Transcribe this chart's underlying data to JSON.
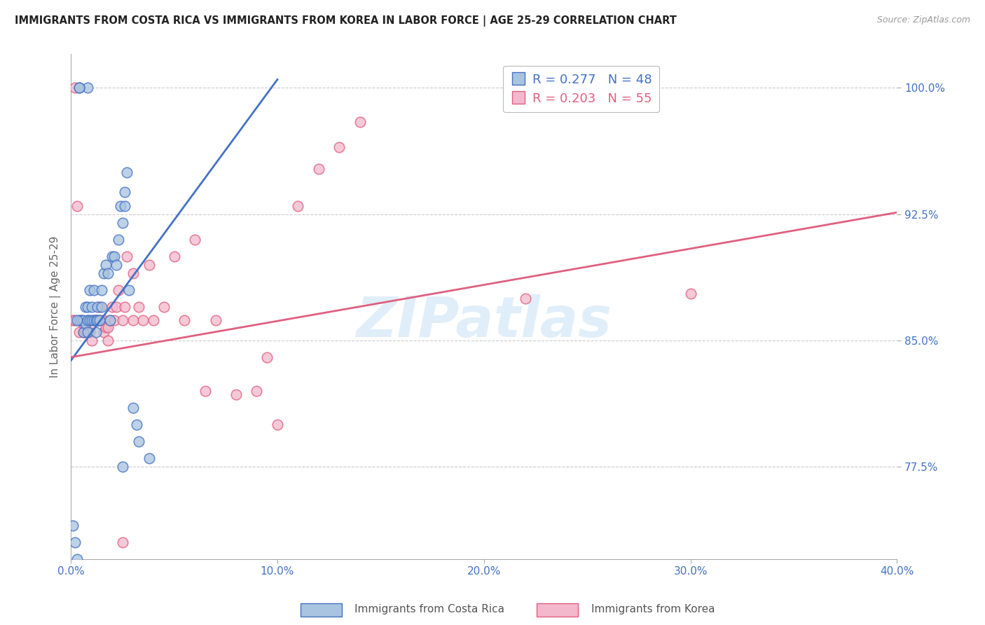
{
  "title": "IMMIGRANTS FROM COSTA RICA VS IMMIGRANTS FROM KOREA IN LABOR FORCE | AGE 25-29 CORRELATION CHART",
  "source_text": "Source: ZipAtlas.com",
  "ylabel": "In Labor Force | Age 25-29",
  "xlim": [
    0.0,
    0.4
  ],
  "ylim": [
    0.72,
    1.02
  ],
  "xtick_labels": [
    "0.0%",
    "10.0%",
    "20.0%",
    "30.0%",
    "40.0%"
  ],
  "xtick_vals": [
    0.0,
    0.1,
    0.2,
    0.3,
    0.4
  ],
  "ytick_labels": [
    "77.5%",
    "85.0%",
    "92.5%",
    "100.0%"
  ],
  "ytick_vals": [
    0.775,
    0.85,
    0.925,
    1.0
  ],
  "blue_R": 0.277,
  "blue_N": 48,
  "pink_R": 0.203,
  "pink_N": 55,
  "legend_label_blue": "Immigrants from Costa Rica",
  "legend_label_pink": "Immigrants from Korea",
  "blue_color": "#a8c4e0",
  "pink_color": "#f4b8cc",
  "blue_line_color": "#4472c4",
  "pink_line_color": "#e06080",
  "blue_line_x0": 0.0,
  "blue_line_y0": 0.838,
  "blue_line_x1": 0.1,
  "blue_line_y1": 1.005,
  "pink_line_x0": 0.0,
  "pink_line_y0": 0.84,
  "pink_line_x1": 0.4,
  "pink_line_y1": 0.926,
  "blue_scatter_x": [
    0.001,
    0.002,
    0.003,
    0.004,
    0.005,
    0.006,
    0.006,
    0.007,
    0.007,
    0.008,
    0.008,
    0.008,
    0.009,
    0.009,
    0.01,
    0.01,
    0.011,
    0.011,
    0.012,
    0.012,
    0.013,
    0.013,
    0.014,
    0.015,
    0.015,
    0.016,
    0.017,
    0.018,
    0.019,
    0.02,
    0.021,
    0.022,
    0.023,
    0.024,
    0.025,
    0.026,
    0.026,
    0.027,
    0.028,
    0.03,
    0.032,
    0.033,
    0.038,
    0.008,
    0.004,
    0.004,
    0.025,
    0.003
  ],
  "blue_scatter_y": [
    0.74,
    0.73,
    0.72,
    0.862,
    0.862,
    0.862,
    0.855,
    0.86,
    0.87,
    0.855,
    0.862,
    0.87,
    0.862,
    0.88,
    0.862,
    0.87,
    0.862,
    0.88,
    0.862,
    0.855,
    0.862,
    0.87,
    0.862,
    0.87,
    0.88,
    0.89,
    0.895,
    0.89,
    0.862,
    0.9,
    0.9,
    0.895,
    0.91,
    0.93,
    0.92,
    0.93,
    0.938,
    0.95,
    0.88,
    0.81,
    0.8,
    0.79,
    0.78,
    1.0,
    1.0,
    1.0,
    0.775,
    0.862
  ],
  "pink_scatter_x": [
    0.001,
    0.002,
    0.004,
    0.005,
    0.006,
    0.006,
    0.007,
    0.008,
    0.008,
    0.009,
    0.01,
    0.011,
    0.012,
    0.013,
    0.014,
    0.014,
    0.015,
    0.016,
    0.016,
    0.017,
    0.018,
    0.018,
    0.019,
    0.02,
    0.021,
    0.022,
    0.023,
    0.025,
    0.026,
    0.027,
    0.03,
    0.03,
    0.033,
    0.035,
    0.038,
    0.04,
    0.045,
    0.05,
    0.055,
    0.06,
    0.065,
    0.07,
    0.08,
    0.09,
    0.095,
    0.1,
    0.11,
    0.12,
    0.13,
    0.14,
    0.22,
    0.3,
    0.025,
    0.003,
    0.002
  ],
  "pink_scatter_y": [
    0.862,
    0.862,
    0.855,
    0.862,
    0.86,
    0.855,
    0.855,
    0.862,
    0.855,
    0.855,
    0.85,
    0.862,
    0.862,
    0.862,
    0.87,
    0.862,
    0.862,
    0.862,
    0.855,
    0.858,
    0.858,
    0.85,
    0.862,
    0.87,
    0.862,
    0.87,
    0.88,
    0.862,
    0.87,
    0.9,
    0.89,
    0.862,
    0.87,
    0.862,
    0.895,
    0.862,
    0.87,
    0.9,
    0.862,
    0.91,
    0.82,
    0.862,
    0.818,
    0.82,
    0.84,
    0.8,
    0.93,
    0.952,
    0.965,
    0.98,
    0.875,
    0.878,
    0.73,
    0.93,
    1.0
  ],
  "watermark_text": "ZIPatlas",
  "background_color": "#ffffff",
  "grid_color": "#cccccc"
}
